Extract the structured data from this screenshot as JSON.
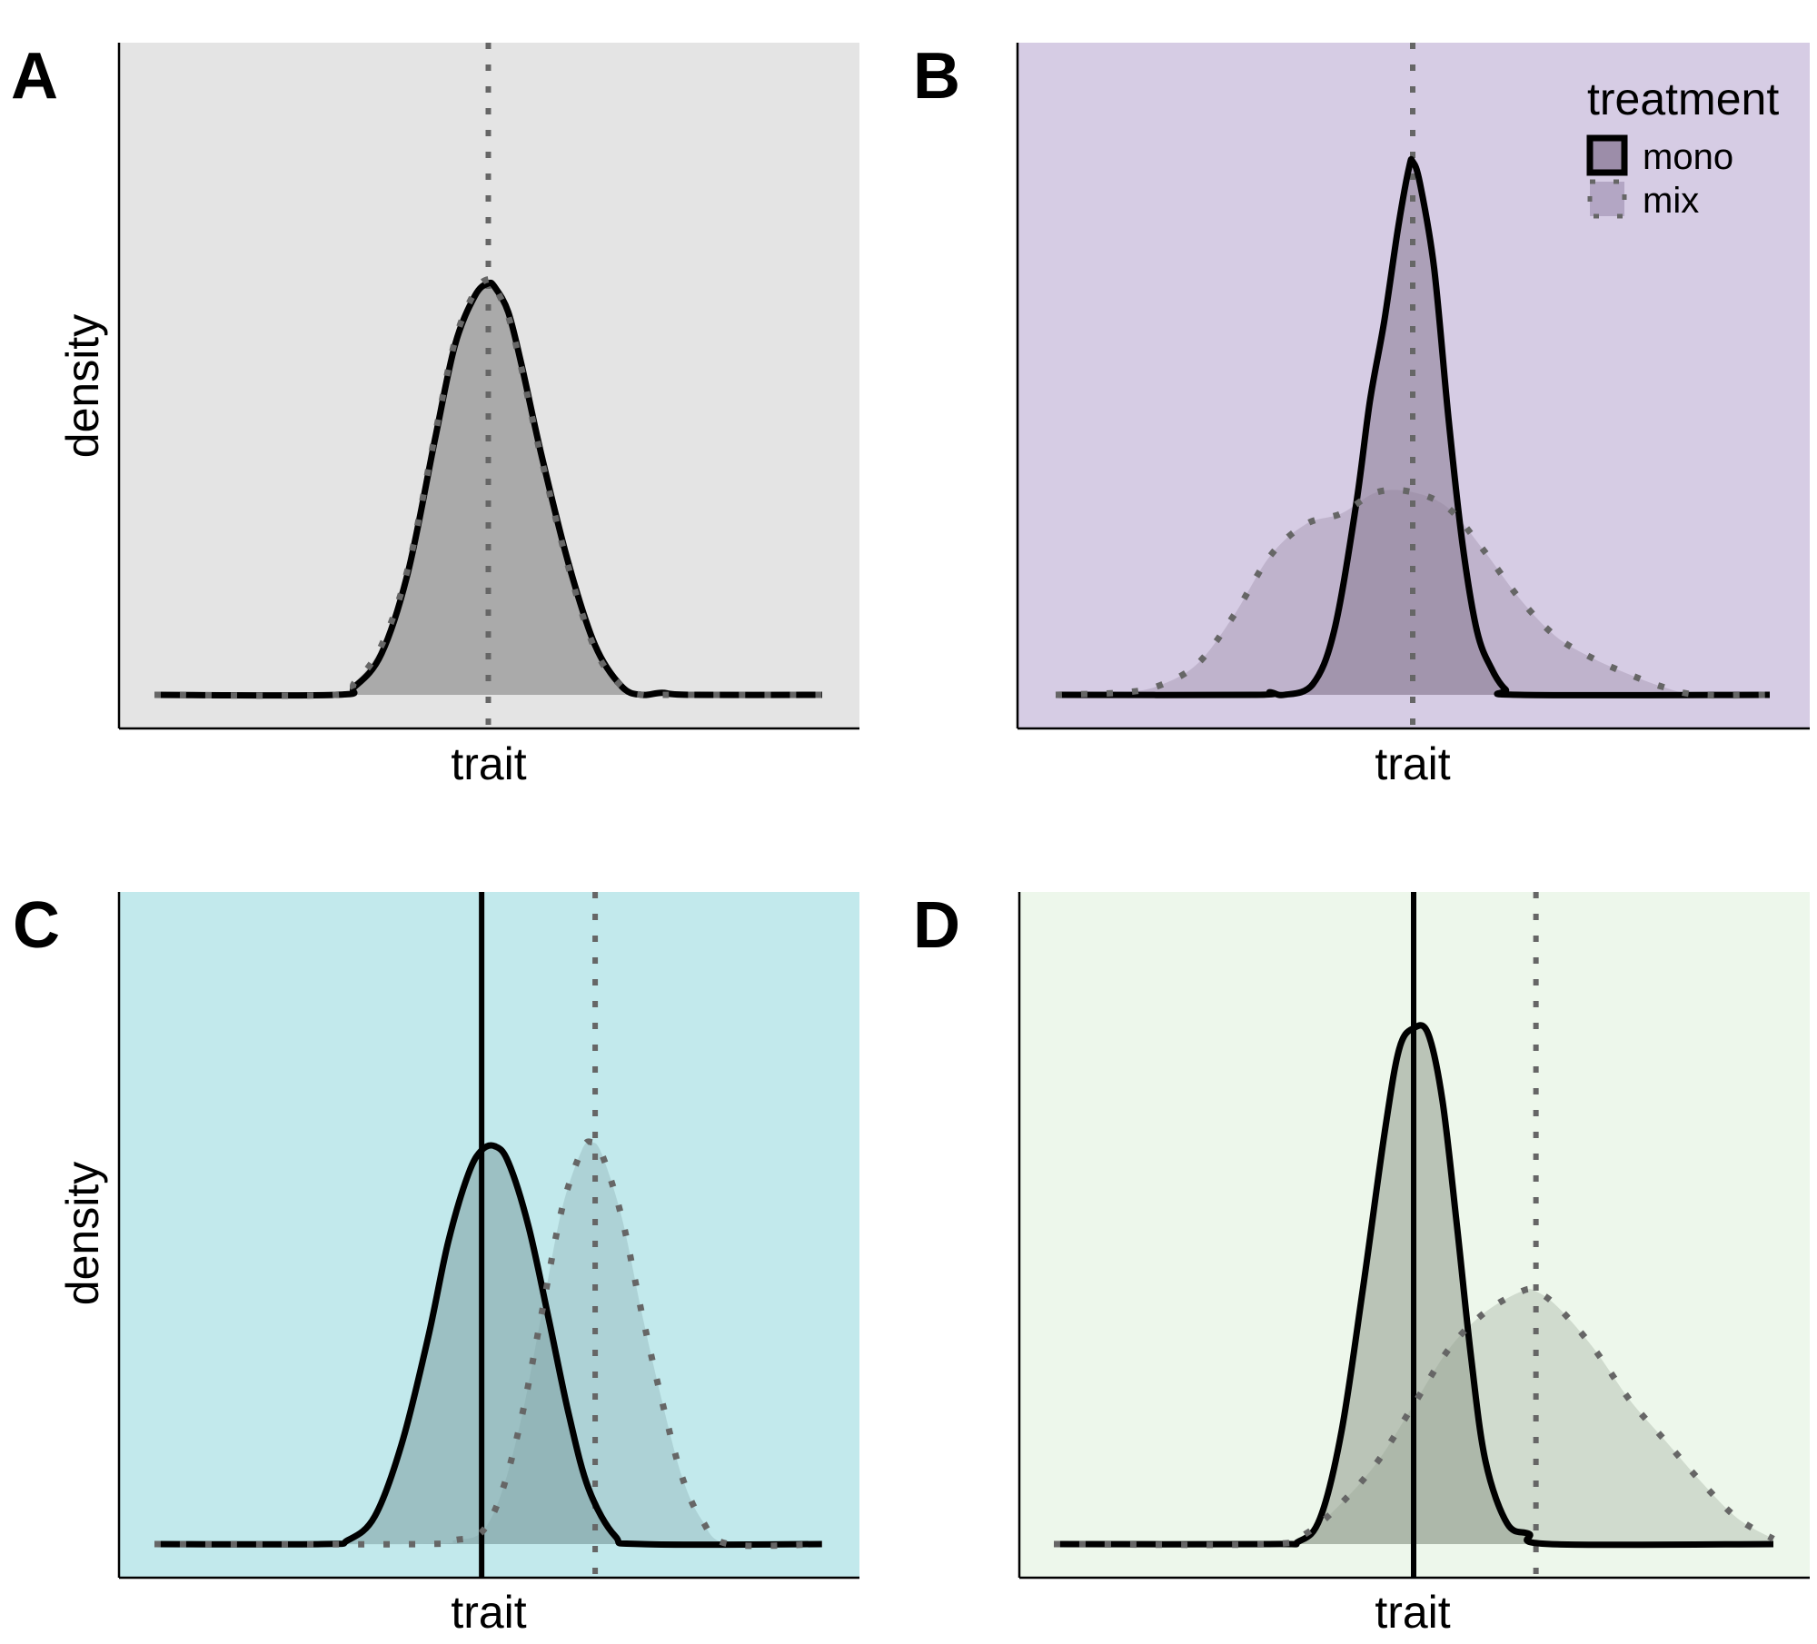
{
  "chart_data": [
    {
      "type": "area",
      "panel": "A",
      "title": "",
      "xlabel": "trait",
      "ylabel": "density",
      "background": "#e4e4e4",
      "fill_color": "#8f8f8f",
      "xlim": [
        0,
        1
      ],
      "ylim": [
        0,
        1
      ],
      "vlines": [
        {
          "x": 0.5,
          "style": "dotted",
          "color": "#666666"
        }
      ],
      "series": [
        {
          "name": "mono",
          "line": "solid",
          "x": [
            0,
            0.27,
            0.3,
            0.34,
            0.38,
            0.42,
            0.45,
            0.48,
            0.5,
            0.51,
            0.53,
            0.55,
            0.58,
            0.62,
            0.66,
            0.7,
            0.73,
            0.76,
            0.8,
            1
          ],
          "y": [
            0,
            0,
            0.02,
            0.1,
            0.3,
            0.62,
            0.85,
            0.97,
            1.0,
            0.99,
            0.93,
            0.8,
            0.58,
            0.32,
            0.12,
            0.02,
            0,
            0.005,
            0,
            0
          ]
        },
        {
          "name": "mix",
          "line": "dotted",
          "x": [
            0,
            0.27,
            0.3,
            0.34,
            0.38,
            0.42,
            0.45,
            0.48,
            0.5,
            0.51,
            0.53,
            0.55,
            0.58,
            0.62,
            0.66,
            0.7,
            0.73,
            0.76,
            0.8,
            1
          ],
          "y": [
            0,
            0,
            0.03,
            0.12,
            0.31,
            0.63,
            0.86,
            0.98,
            1.01,
            0.99,
            0.92,
            0.79,
            0.57,
            0.31,
            0.11,
            0.02,
            0,
            0,
            0,
            0
          ]
        }
      ]
    },
    {
      "type": "area",
      "panel": "B",
      "title": "",
      "xlabel": "trait",
      "ylabel": "",
      "background": "#d6cce4",
      "fill_color": "#8a7b94",
      "xlim": [
        0,
        1
      ],
      "ylim": [
        0,
        1
      ],
      "vlines": [
        {
          "x": 0.5,
          "style": "dotted",
          "color": "#666666"
        }
      ],
      "series": [
        {
          "name": "mono",
          "line": "solid",
          "x": [
            0,
            0.28,
            0.3,
            0.32,
            0.36,
            0.39,
            0.42,
            0.44,
            0.46,
            0.48,
            0.495,
            0.5,
            0.51,
            0.53,
            0.55,
            0.57,
            0.59,
            0.61,
            0.63,
            0.65,
            1
          ],
          "y": [
            0,
            0,
            0.005,
            0,
            0.02,
            0.12,
            0.35,
            0.55,
            0.7,
            0.88,
            0.99,
            1.0,
            0.96,
            0.8,
            0.52,
            0.28,
            0.12,
            0.05,
            0.01,
            0,
            0
          ]
        },
        {
          "name": "mix",
          "line": "dotted",
          "x": [
            0,
            0.1,
            0.15,
            0.2,
            0.25,
            0.3,
            0.35,
            0.4,
            0.45,
            0.5,
            0.55,
            0.6,
            0.65,
            0.7,
            0.75,
            0.8,
            0.85,
            0.9,
            1
          ],
          "y": [
            0,
            0.005,
            0.02,
            0.06,
            0.15,
            0.26,
            0.32,
            0.34,
            0.38,
            0.38,
            0.35,
            0.27,
            0.18,
            0.11,
            0.07,
            0.04,
            0.015,
            0,
            0
          ]
        }
      ],
      "legend": {
        "title": "treatment",
        "position": "top-right",
        "items": [
          "mono",
          "mix"
        ]
      }
    },
    {
      "type": "area",
      "panel": "C",
      "title": "",
      "xlabel": "trait",
      "ylabel": "density",
      "background": "#c2e9ec",
      "fill_color": "#7d9fa2",
      "xlim": [
        0,
        1
      ],
      "ylim": [
        0,
        1
      ],
      "vlines": [
        {
          "x": 0.49,
          "style": "solid",
          "color": "#000000"
        },
        {
          "x": 0.66,
          "style": "dotted",
          "color": "#666666"
        }
      ],
      "series": [
        {
          "name": "mono",
          "line": "solid",
          "x": [
            0,
            0.25,
            0.29,
            0.33,
            0.37,
            0.41,
            0.44,
            0.47,
            0.49,
            0.51,
            0.53,
            0.56,
            0.59,
            0.62,
            0.65,
            0.69,
            0.73,
            1
          ],
          "y": [
            0,
            0,
            0.01,
            0.07,
            0.25,
            0.52,
            0.76,
            0.93,
            0.99,
            1.0,
            0.96,
            0.8,
            0.57,
            0.33,
            0.14,
            0.02,
            0,
            0
          ]
        },
        {
          "name": "mix",
          "line": "dotted",
          "x": [
            0,
            0.4,
            0.45,
            0.49,
            0.52,
            0.55,
            0.58,
            0.61,
            0.64,
            0.655,
            0.67,
            0.7,
            0.73,
            0.76,
            0.79,
            0.82,
            0.86,
            1
          ],
          "y": [
            0,
            0,
            0.01,
            0.03,
            0.13,
            0.32,
            0.58,
            0.84,
            0.99,
            1.01,
            0.98,
            0.82,
            0.58,
            0.36,
            0.17,
            0.06,
            0,
            0
          ]
        }
      ]
    },
    {
      "type": "area",
      "panel": "D",
      "title": "",
      "xlabel": "trait",
      "ylabel": "",
      "background": "#edf7eb",
      "fill_color": "#8f9a8c",
      "xlim": [
        0,
        1
      ],
      "ylim": [
        0,
        1
      ],
      "vlines": [
        {
          "x": 0.5,
          "style": "solid",
          "color": "#000000"
        },
        {
          "x": 0.67,
          "style": "dotted",
          "color": "#666666"
        }
      ],
      "series": [
        {
          "name": "mono",
          "line": "solid",
          "x": [
            0,
            0.3,
            0.34,
            0.37,
            0.4,
            0.43,
            0.46,
            0.48,
            0.5,
            0.52,
            0.54,
            0.56,
            0.58,
            0.6,
            0.63,
            0.66,
            0.69,
            1
          ],
          "y": [
            0,
            0,
            0.005,
            0.05,
            0.22,
            0.5,
            0.8,
            0.96,
            1.0,
            0.99,
            0.86,
            0.62,
            0.36,
            0.16,
            0.04,
            0.02,
            0,
            0
          ]
        },
        {
          "name": "mix",
          "line": "dotted",
          "x": [
            0,
            0.3,
            0.35,
            0.4,
            0.45,
            0.5,
            0.55,
            0.6,
            0.65,
            0.67,
            0.7,
            0.75,
            0.8,
            0.85,
            0.9,
            0.95,
            1
          ],
          "y": [
            0,
            0,
            0.02,
            0.08,
            0.16,
            0.27,
            0.38,
            0.45,
            0.49,
            0.49,
            0.46,
            0.38,
            0.28,
            0.2,
            0.12,
            0.05,
            0.01
          ]
        }
      ]
    }
  ],
  "panels": [
    {
      "letter": "A",
      "xlabel": "trait",
      "ylabel": "density"
    },
    {
      "letter": "B",
      "xlabel": "trait",
      "ylabel": ""
    },
    {
      "letter": "C",
      "xlabel": "trait",
      "ylabel": "density"
    },
    {
      "letter": "D",
      "xlabel": "trait",
      "ylabel": ""
    }
  ],
  "legend": {
    "title": "treatment",
    "items": [
      {
        "label": "mono",
        "line": "solid"
      },
      {
        "label": "mix",
        "line": "dotted"
      }
    ]
  }
}
